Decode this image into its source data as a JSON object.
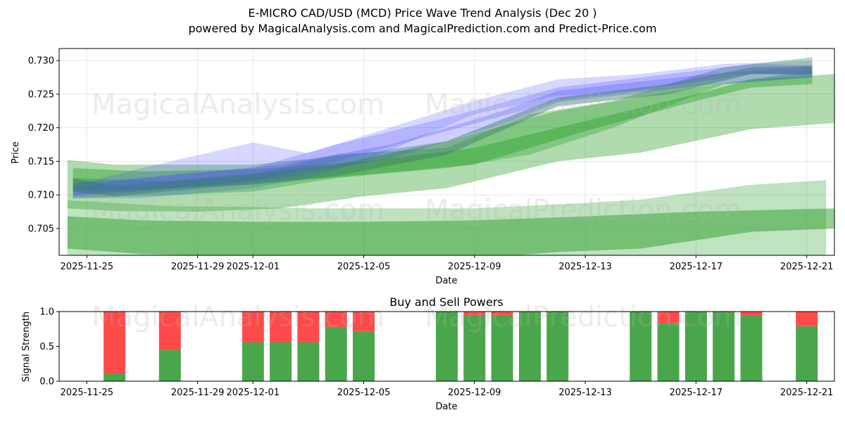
{
  "header": {
    "title": "E-MICRO CAD/USD (MCD) Price Wave Trend Analysis (Dec 20 )",
    "subtitle": "powered by MagicalAnalysis.com and MagicalPrediction.com and Predict-Price.com"
  },
  "watermarks": [
    "MagicalAnalysis.com",
    "MagicalPrediction.com"
  ],
  "colors": {
    "green_band": "#2ca02c",
    "blue_band": "#4a4aff",
    "buy": "#4aa64a",
    "sell": "#ff4a4a",
    "grid": "#e6e6e6"
  },
  "chart_data": [
    {
      "type": "area",
      "title": "",
      "xlabel": "Date",
      "ylabel": "Price",
      "x_ticks": [
        "2025-11-25",
        "2025-11-29",
        "2025-12-01",
        "2025-12-05",
        "2025-12-09",
        "2025-12-13",
        "2025-12-17",
        "2025-12-21"
      ],
      "y_ticks": [
        "0.705",
        "0.710",
        "0.715",
        "0.720",
        "0.725",
        "0.730"
      ],
      "ylim": [
        0.701,
        0.7318
      ],
      "xlim": [
        "2025-11-24",
        "2025-12-22"
      ],
      "series": [
        {
          "name": "green-band-wide-top",
          "color": "green",
          "opacity": 0.38,
          "upper": [
            [
              "2025-11-24.3",
              0.7152
            ],
            [
              "2025-11-26",
              0.7145
            ],
            [
              "2025-12-01",
              0.7145
            ],
            [
              "2025-12-05",
              0.7162
            ],
            [
              "2025-12-08",
              0.718
            ],
            [
              "2025-12-12",
              0.7225
            ],
            [
              "2025-12-17",
              0.726
            ],
            [
              "2025-12-19",
              0.7272
            ],
            [
              "2025-12-22",
              0.728
            ]
          ],
          "lower": [
            [
              "2025-12-22",
              0.7207
            ],
            [
              "2025-12-19",
              0.7198
            ],
            [
              "2025-12-15",
              0.7163
            ],
            [
              "2025-12-12",
              0.715
            ],
            [
              "2025-12-08",
              0.711
            ],
            [
              "2025-12-05",
              0.7098
            ],
            [
              "2025-12-02",
              0.708
            ],
            [
              "2025-11-29",
              0.7075
            ],
            [
              "2025-11-26",
              0.7076
            ],
            [
              "2025-11-24.3",
              0.708
            ]
          ]
        },
        {
          "name": "green-band-narrow",
          "color": "green",
          "opacity": 0.42,
          "upper": [
            [
              "2025-11-24.5",
              0.714
            ],
            [
              "2025-11-27",
              0.7135
            ],
            [
              "2025-12-01",
              0.7138
            ],
            [
              "2025-12-05",
              0.715
            ],
            [
              "2025-12-09",
              0.717
            ],
            [
              "2025-12-13",
              0.721
            ],
            [
              "2025-12-17",
              0.725
            ],
            [
              "2025-12-19",
              0.7272
            ],
            [
              "2025-12-21.2",
              0.7285
            ]
          ],
          "lower": [
            [
              "2025-12-21.2",
              0.7265
            ],
            [
              "2025-12-19",
              0.726
            ],
            [
              "2025-12-17",
              0.724
            ],
            [
              "2025-12-13",
              0.7195
            ],
            [
              "2025-12-09",
              0.7145
            ],
            [
              "2025-12-05",
              0.713
            ],
            [
              "2025-12-01",
              0.7115
            ],
            [
              "2025-11-27",
              0.7108
            ],
            [
              "2025-11-24.5",
              0.7105
            ]
          ]
        },
        {
          "name": "green-band-mid",
          "color": "green",
          "opacity": 0.35,
          "upper": [
            [
              "2025-11-24.5",
              0.7125
            ],
            [
              "2025-11-28",
              0.712
            ],
            [
              "2025-12-01",
              0.713
            ],
            [
              "2025-12-04",
              0.716
            ],
            [
              "2025-12-08",
              0.717
            ],
            [
              "2025-12-11",
              0.722
            ],
            [
              "2025-12-14",
              0.724
            ],
            [
              "2025-12-18",
              0.729
            ],
            [
              "2025-12-21.2",
              0.7305
            ]
          ],
          "lower": [
            [
              "2025-12-21.2",
              0.7275
            ],
            [
              "2025-12-18",
              0.7265
            ],
            [
              "2025-12-14",
              0.72
            ],
            [
              "2025-12-11",
              0.716
            ],
            [
              "2025-12-08",
              0.714
            ],
            [
              "2025-12-04",
              0.7125
            ],
            [
              "2025-12-01",
              0.7105
            ],
            [
              "2025-11-28",
              0.71
            ],
            [
              "2025-11-24.5",
              0.7095
            ]
          ]
        },
        {
          "name": "green-band-bottom-dark",
          "color": "green",
          "opacity": 0.5,
          "upper": [
            [
              "2025-11-24.3",
              0.7068
            ],
            [
              "2025-11-27",
              0.7062
            ],
            [
              "2025-12-01",
              0.706
            ],
            [
              "2025-12-05",
              0.706
            ],
            [
              "2025-12-09",
              0.7062
            ],
            [
              "2025-12-13",
              0.7068
            ],
            [
              "2025-12-17",
              0.7075
            ],
            [
              "2025-12-22",
              0.708
            ]
          ],
          "lower": [
            [
              "2025-12-22",
              0.705
            ],
            [
              "2025-12-19",
              0.7045
            ],
            [
              "2025-12-15",
              0.702
            ],
            [
              "2025-12-12",
              0.7015
            ],
            [
              "2025-12-09",
              0.7005
            ],
            [
              "2025-12-05",
              0.7005
            ],
            [
              "2025-12-01",
              0.7008
            ],
            [
              "2025-11-27",
              0.7012
            ],
            [
              "2025-11-24.3",
              0.702
            ]
          ]
        },
        {
          "name": "green-band-bottom-light",
          "color": "green",
          "opacity": 0.3,
          "upper": [
            [
              "2025-11-24.3",
              0.7092
            ],
            [
              "2025-11-28",
              0.7083
            ],
            [
              "2025-12-01",
              0.7082
            ],
            [
              "2025-12-03",
              0.708
            ],
            [
              "2025-12-09",
              0.708
            ],
            [
              "2025-12-13",
              0.7088
            ],
            [
              "2025-12-15",
              0.7093
            ],
            [
              "2025-12-19",
              0.7115
            ],
            [
              "2025-12-21.7",
              0.7122
            ]
          ],
          "lower": [
            [
              "2025-12-21.7",
              0.7005
            ],
            [
              "2025-12-13",
              0.7005
            ],
            [
              "2025-12-03",
              0.7005
            ],
            [
              "2025-11-24.3",
              0.7005
            ]
          ]
        },
        {
          "name": "blue-band-1",
          "color": "blue",
          "opacity": 0.22,
          "upper": [
            [
              "2025-11-24.5",
              0.7115
            ],
            [
              "2025-11-27",
              0.714
            ],
            [
              "2025-12-01",
              0.7178
            ],
            [
              "2025-12-03",
              0.7162
            ],
            [
              "2025-12-05",
              0.7188
            ],
            [
              "2025-12-09",
              0.724
            ],
            [
              "2025-12-12",
              0.7272
            ],
            [
              "2025-12-15",
              0.728
            ],
            [
              "2025-12-18",
              0.7295
            ],
            [
              "2025-12-21.2",
              0.73
            ]
          ],
          "lower": [
            [
              "2025-12-21.2",
              0.728
            ],
            [
              "2025-12-18",
              0.728
            ],
            [
              "2025-12-15",
              0.7255
            ],
            [
              "2025-12-12",
              0.7248
            ],
            [
              "2025-12-09",
              0.722
            ],
            [
              "2025-12-05",
              0.715
            ],
            [
              "2025-12-03",
              0.7125
            ],
            [
              "2025-12-01",
              0.711
            ],
            [
              "2025-11-27",
              0.7095
            ],
            [
              "2025-11-24.5",
              0.7095
            ]
          ]
        },
        {
          "name": "blue-band-2",
          "color": "blue",
          "opacity": 0.25,
          "upper": [
            [
              "2025-11-24.5",
              0.7112
            ],
            [
              "2025-11-28",
              0.713
            ],
            [
              "2025-12-01",
              0.714
            ],
            [
              "2025-12-04",
              0.7175
            ],
            [
              "2025-12-08",
              0.7215
            ],
            [
              "2025-12-12",
              0.726
            ],
            [
              "2025-12-16",
              0.728
            ],
            [
              "2025-12-19",
              0.7295
            ],
            [
              "2025-12-21.2",
              0.7293
            ]
          ],
          "lower": [
            [
              "2025-12-21.2",
              0.7278
            ],
            [
              "2025-12-19",
              0.728
            ],
            [
              "2025-12-16",
              0.7262
            ],
            [
              "2025-12-12",
              0.724
            ],
            [
              "2025-12-08",
              0.7195
            ],
            [
              "2025-12-04",
              0.715
            ],
            [
              "2025-12-01",
              0.712
            ],
            [
              "2025-11-28",
              0.711
            ],
            [
              "2025-11-24.5",
              0.71
            ]
          ]
        },
        {
          "name": "blue-band-3",
          "color": "blue",
          "opacity": 0.28,
          "upper": [
            [
              "2025-11-24.5",
              0.7118
            ],
            [
              "2025-11-27",
              0.7125
            ],
            [
              "2025-12-02",
              0.7145
            ],
            [
              "2025-12-06",
              0.7175
            ],
            [
              "2025-12-10",
              0.7225
            ],
            [
              "2025-12-12",
              0.7255
            ],
            [
              "2025-12-17",
              0.7278
            ],
            [
              "2025-12-21.2",
              0.7292
            ]
          ],
          "lower": [
            [
              "2025-12-21.2",
              0.7275
            ],
            [
              "2025-12-17",
              0.7262
            ],
            [
              "2025-12-12",
              0.7238
            ],
            [
              "2025-12-10",
              0.7205
            ],
            [
              "2025-12-06",
              0.7155
            ],
            [
              "2025-12-02",
              0.7125
            ],
            [
              "2025-11-27",
              0.7105
            ],
            [
              "2025-11-24.5",
              0.7098
            ]
          ]
        },
        {
          "name": "teal-core",
          "color": "teal",
          "opacity": 0.45,
          "upper": [
            [
              "2025-11-24.5",
              0.7125
            ],
            [
              "2025-11-26",
              0.7113
            ],
            [
              "2025-11-30",
              0.7128
            ],
            [
              "2025-12-04",
              0.7145
            ],
            [
              "2025-12-08",
              0.718
            ],
            [
              "2025-12-12",
              0.7245
            ],
            [
              "2025-12-16",
              0.7265
            ],
            [
              "2025-12-19",
              0.729
            ],
            [
              "2025-12-21.2",
              0.7292
            ]
          ],
          "lower": [
            [
              "2025-12-21.2",
              0.728
            ],
            [
              "2025-12-19",
              0.728
            ],
            [
              "2025-12-16",
              0.725
            ],
            [
              "2025-12-12",
              0.7232
            ],
            [
              "2025-12-08",
              0.716
            ],
            [
              "2025-12-04",
              0.7128
            ],
            [
              "2025-11-30",
              0.7113
            ],
            [
              "2025-11-26",
              0.7098
            ],
            [
              "2025-11-24.5",
              0.7105
            ]
          ]
        }
      ]
    },
    {
      "type": "bar",
      "title": "Buy and Sell Powers",
      "xlabel": "Date",
      "ylabel": "Signal Strength",
      "ylim": [
        0,
        1
      ],
      "y_ticks": [
        "0.0",
        "0.5",
        "1.0"
      ],
      "x_ticks": [
        "2025-11-25",
        "2025-11-29",
        "2025-12-01",
        "2025-12-05",
        "2025-12-09",
        "2025-12-13",
        "2025-12-17",
        "2025-12-21"
      ],
      "dates": [
        "2025-11-26",
        "2025-11-28",
        "2025-12-01",
        "2025-12-02",
        "2025-12-03",
        "2025-12-04",
        "2025-12-05",
        "2025-12-08",
        "2025-12-09",
        "2025-12-10",
        "2025-12-11",
        "2025-12-12",
        "2025-12-15",
        "2025-12-16",
        "2025-12-17",
        "2025-12-18",
        "2025-12-19",
        "2025-12-21"
      ],
      "series": [
        {
          "name": "Buy",
          "values": [
            0.11,
            0.45,
            0.56,
            0.56,
            0.56,
            0.78,
            0.72,
            1.0,
            0.95,
            0.95,
            1.0,
            1.0,
            1.0,
            0.83,
            1.0,
            1.0,
            0.94,
            0.79
          ]
        },
        {
          "name": "Sell",
          "values": [
            0.89,
            0.55,
            0.44,
            0.44,
            0.44,
            0.22,
            0.28,
            0.0,
            0.05,
            0.05,
            0.0,
            0.0,
            0.0,
            0.17,
            0.0,
            0.0,
            0.06,
            0.21
          ]
        }
      ]
    }
  ]
}
